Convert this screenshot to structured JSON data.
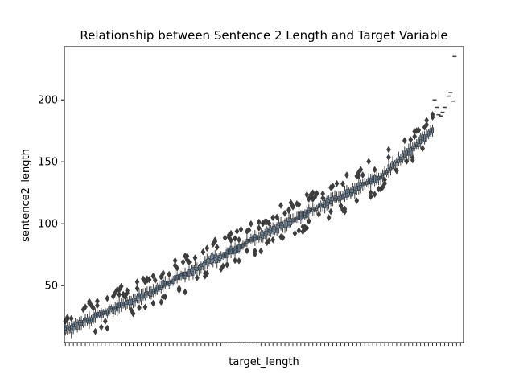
{
  "chart_data": {
    "type": "box",
    "title": "Relationship between Sentence 2 Length and Target Variable",
    "xlabel": "target_length",
    "ylabel": "sentence2_length",
    "x_tick_labels_visible": false,
    "category_count": 200,
    "ylim": [
      4,
      243
    ],
    "yticks": [
      50,
      100,
      150,
      200
    ],
    "grid": false,
    "box_color": "#3d3d3d",
    "box_fill": "#6a8faf",
    "trend": {
      "description_points": [
        {
          "x": 1,
          "y": 14
        },
        {
          "x": 40,
          "y": 42
        },
        {
          "x": 80,
          "y": 75
        },
        {
          "x": 120,
          "y": 107
        },
        {
          "x": 160,
          "y": 139
        },
        {
          "x": 200,
          "y": 198
        }
      ]
    },
    "tail_points": [
      {
        "x": 186,
        "y": 200
      },
      {
        "x": 187,
        "y": 194
      },
      {
        "x": 188,
        "y": 188
      },
      {
        "x": 189,
        "y": 187
      },
      {
        "x": 190,
        "y": 190
      },
      {
        "x": 191,
        "y": 194
      },
      {
        "x": 193,
        "y": 203
      },
      {
        "x": 194,
        "y": 206
      },
      {
        "x": 195,
        "y": 199
      },
      {
        "x": 196,
        "y": 235
      }
    ]
  }
}
